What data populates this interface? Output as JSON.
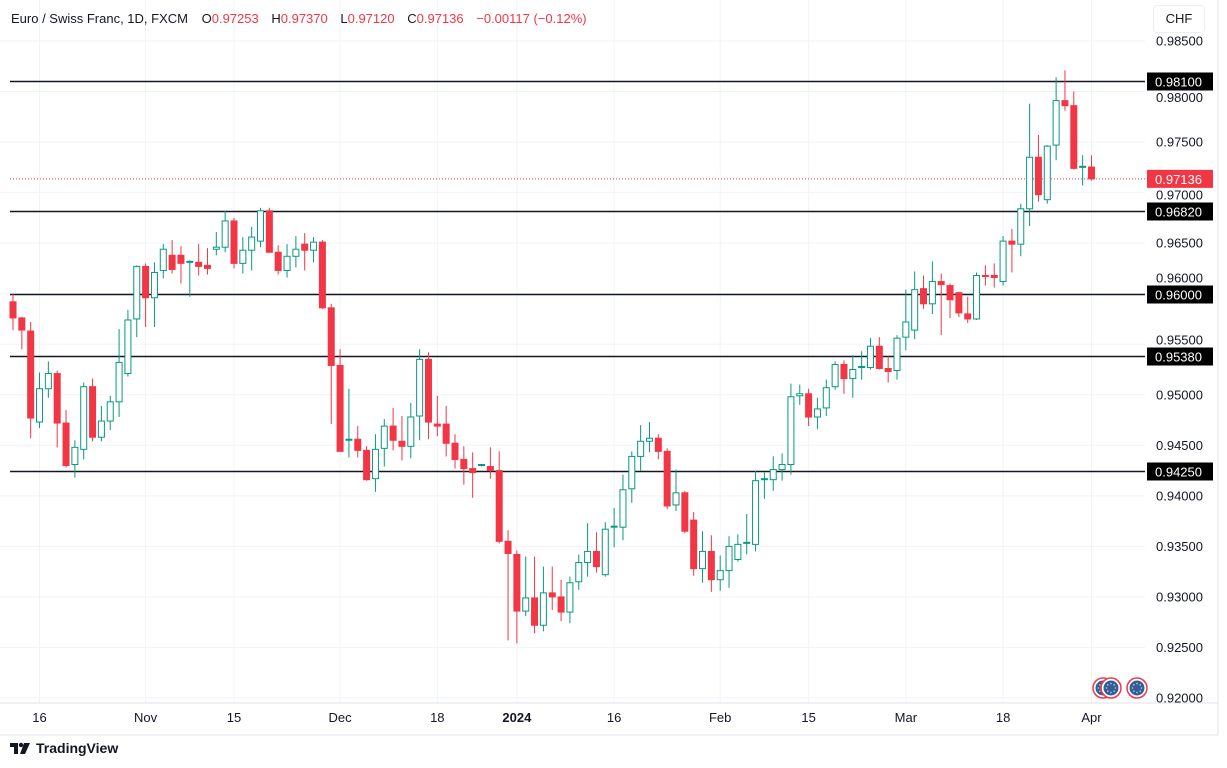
{
  "header": {
    "title": "Euro / Swiss Franc, 1D, FXCM",
    "o_label": "O",
    "o_value": "0.97253",
    "h_label": "H",
    "h_value": "0.97370",
    "l_label": "L",
    "l_value": "0.97120",
    "c_label": "C",
    "c_value": "0.97136",
    "change": "−0.00117 (−0.12%)"
  },
  "currency_button": "CHF",
  "footer": {
    "brand": "TradingView"
  },
  "colors": {
    "up": "#089981",
    "down": "#f23645",
    "level_line": "#131722",
    "last_price": "#f23645",
    "grid": "#f0f3fa"
  },
  "events": [
    {
      "icon": "eu-flag-icon"
    },
    {
      "icon": "eu-flag-icon"
    },
    {
      "icon": "eu-flag-icon"
    }
  ],
  "chart_data": {
    "type": "candlestick",
    "symbol": "EURCHF",
    "interval": "1D",
    "ylim": [
      0.92,
      0.985
    ],
    "grid": true,
    "y_ticks": [
      "0.98500",
      "0.98000",
      "0.97500",
      "0.97000",
      "0.96500",
      "0.96000",
      "0.95500",
      "0.95000",
      "0.94500",
      "0.94000",
      "0.93500",
      "0.93000",
      "0.92500",
      "0.92000"
    ],
    "x_ticks": [
      {
        "label": "16",
        "date": "2023-10-16"
      },
      {
        "label": "Nov",
        "date": "2023-11-01"
      },
      {
        "label": "15",
        "date": "2023-11-15"
      },
      {
        "label": "Dec",
        "date": "2023-12-01"
      },
      {
        "label": "18",
        "date": "2023-12-18"
      },
      {
        "label": "2024",
        "date": "2024-01-01",
        "bold": true
      },
      {
        "label": "16",
        "date": "2024-01-16"
      },
      {
        "label": "Feb",
        "date": "2024-02-01"
      },
      {
        "label": "15",
        "date": "2024-02-15"
      },
      {
        "label": "Mar",
        "date": "2024-03-01"
      },
      {
        "label": "18",
        "date": "2024-03-18"
      },
      {
        "label": "Apr",
        "date": "2024-04-01"
      }
    ],
    "horizontal_levels": [
      "0.98100",
      "0.96820",
      "0.96000",
      "0.95380",
      "0.94250"
    ],
    "last_price": "0.97136",
    "candle_fields": [
      "date",
      "open",
      "high",
      "low",
      "close"
    ],
    "candles": [
      [
        "2023-10-11",
        0.9592,
        0.96,
        0.9564,
        0.9576
      ],
      [
        "2023-10-12",
        0.9576,
        0.9577,
        0.9545,
        0.9564
      ],
      [
        "2023-10-13",
        0.9563,
        0.9572,
        0.9457,
        0.9477
      ],
      [
        "2023-10-16",
        0.9473,
        0.9522,
        0.9467,
        0.9506
      ],
      [
        "2023-10-17",
        0.9506,
        0.9533,
        0.9497,
        0.9521
      ],
      [
        "2023-10-18",
        0.9521,
        0.9524,
        0.9448,
        0.9472
      ],
      [
        "2023-10-19",
        0.9472,
        0.9485,
        0.9428,
        0.943
      ],
      [
        "2023-10-20",
        0.9431,
        0.9455,
        0.9418,
        0.9448
      ],
      [
        "2023-10-23",
        0.9446,
        0.9512,
        0.9436,
        0.9508
      ],
      [
        "2023-10-24",
        0.9508,
        0.9516,
        0.9454,
        0.9458
      ],
      [
        "2023-10-25",
        0.9458,
        0.9489,
        0.9454,
        0.9474
      ],
      [
        "2023-10-26",
        0.9474,
        0.9499,
        0.9465,
        0.9493
      ],
      [
        "2023-10-27",
        0.9493,
        0.9565,
        0.9478,
        0.9532
      ],
      [
        "2023-10-30",
        0.9521,
        0.9584,
        0.9518,
        0.9574
      ],
      [
        "2023-10-31",
        0.9575,
        0.9628,
        0.9557,
        0.9627
      ],
      [
        "2023-11-01",
        0.9627,
        0.963,
        0.9567,
        0.9596
      ],
      [
        "2023-11-02",
        0.9596,
        0.9631,
        0.9567,
        0.9621
      ],
      [
        "2023-11-03",
        0.9623,
        0.9649,
        0.9615,
        0.9644
      ],
      [
        "2023-11-06",
        0.9638,
        0.9653,
        0.962,
        0.9624
      ],
      [
        "2023-11-07",
        0.9638,
        0.9647,
        0.961,
        0.963
      ],
      [
        "2023-11-08",
        0.9631,
        0.9633,
        0.9597,
        0.9632
      ],
      [
        "2023-11-09",
        0.9631,
        0.9649,
        0.9618,
        0.9627
      ],
      [
        "2023-11-10",
        0.9628,
        0.9645,
        0.9619,
        0.9625
      ],
      [
        "2023-11-13",
        0.9644,
        0.9661,
        0.9638,
        0.9646
      ],
      [
        "2023-11-14",
        0.9646,
        0.9682,
        0.9641,
        0.9672
      ],
      [
        "2023-11-15",
        0.9672,
        0.9675,
        0.9625,
        0.963
      ],
      [
        "2023-11-16",
        0.963,
        0.9656,
        0.962,
        0.9643
      ],
      [
        "2023-11-17",
        0.9643,
        0.9666,
        0.9623,
        0.9656
      ],
      [
        "2023-11-20",
        0.9652,
        0.9685,
        0.9646,
        0.9682
      ],
      [
        "2023-11-21",
        0.9682,
        0.9685,
        0.9641,
        0.9641
      ],
      [
        "2023-11-22",
        0.9641,
        0.9648,
        0.9619,
        0.9623
      ],
      [
        "2023-11-23",
        0.9623,
        0.9649,
        0.9616,
        0.9637
      ],
      [
        "2023-11-24",
        0.9637,
        0.9657,
        0.9626,
        0.9644
      ],
      [
        "2023-11-27",
        0.9649,
        0.966,
        0.9623,
        0.9643
      ],
      [
        "2023-11-28",
        0.9643,
        0.9656,
        0.9631,
        0.9651
      ],
      [
        "2023-11-29",
        0.9651,
        0.9653,
        0.9585,
        0.9586
      ],
      [
        "2023-11-30",
        0.9586,
        0.959,
        0.9471,
        0.9529
      ],
      [
        "2023-12-01",
        0.9529,
        0.9545,
        0.9444,
        0.9444
      ],
      [
        "2023-12-04",
        0.9455,
        0.9506,
        0.9438,
        0.9456
      ],
      [
        "2023-12-05",
        0.9456,
        0.9469,
        0.9438,
        0.9445
      ],
      [
        "2023-12-06",
        0.9445,
        0.9449,
        0.9415,
        0.9416
      ],
      [
        "2023-12-07",
        0.9417,
        0.9461,
        0.9404,
        0.9446
      ],
      [
        "2023-12-08",
        0.9447,
        0.9476,
        0.9429,
        0.9469
      ],
      [
        "2023-12-11",
        0.9469,
        0.9487,
        0.9445,
        0.9455
      ],
      [
        "2023-12-12",
        0.9454,
        0.9479,
        0.9435,
        0.9449
      ],
      [
        "2023-12-13",
        0.9449,
        0.9492,
        0.9437,
        0.9478
      ],
      [
        "2023-12-14",
        0.9479,
        0.9545,
        0.9455,
        0.9535
      ],
      [
        "2023-12-15",
        0.9535,
        0.9542,
        0.9456,
        0.9473
      ],
      [
        "2023-12-18",
        0.9471,
        0.9499,
        0.9459,
        0.9469
      ],
      [
        "2023-12-19",
        0.9471,
        0.9489,
        0.9439,
        0.9452
      ],
      [
        "2023-12-20",
        0.9452,
        0.9461,
        0.9427,
        0.9436
      ],
      [
        "2023-12-21",
        0.9436,
        0.9449,
        0.9411,
        0.9427
      ],
      [
        "2023-12-22",
        0.9427,
        0.9443,
        0.9398,
        0.9423
      ],
      [
        "2023-12-26",
        0.943,
        0.9431,
        0.9429,
        0.9431
      ],
      [
        "2023-12-27",
        0.9429,
        0.9448,
        0.9417,
        0.9425
      ],
      [
        "2023-12-28",
        0.9425,
        0.9444,
        0.9353,
        0.9355
      ],
      [
        "2023-12-29",
        0.9355,
        0.9366,
        0.9257,
        0.9343
      ],
      [
        "2024-01-01",
        0.9342,
        0.9346,
        0.9254,
        0.9286
      ],
      [
        "2024-01-02",
        0.9286,
        0.934,
        0.9281,
        0.9299
      ],
      [
        "2024-01-03",
        0.9299,
        0.934,
        0.9264,
        0.9272
      ],
      [
        "2024-01-04",
        0.9272,
        0.933,
        0.9266,
        0.9304
      ],
      [
        "2024-01-05",
        0.9304,
        0.933,
        0.9287,
        0.93
      ],
      [
        "2024-01-08",
        0.93,
        0.9317,
        0.9276,
        0.9285
      ],
      [
        "2024-01-09",
        0.9285,
        0.932,
        0.9274,
        0.9314
      ],
      [
        "2024-01-10",
        0.9315,
        0.9342,
        0.9307,
        0.9334
      ],
      [
        "2024-01-11",
        0.9334,
        0.9373,
        0.932,
        0.9345
      ],
      [
        "2024-01-12",
        0.9345,
        0.9364,
        0.9324,
        0.933
      ],
      [
        "2024-01-15",
        0.9322,
        0.9374,
        0.932,
        0.9367
      ],
      [
        "2024-01-16",
        0.9369,
        0.9388,
        0.9349,
        0.937
      ],
      [
        "2024-01-17",
        0.9369,
        0.9421,
        0.9356,
        0.9406
      ],
      [
        "2024-01-18",
        0.9407,
        0.9444,
        0.9393,
        0.9439
      ],
      [
        "2024-01-19",
        0.9439,
        0.947,
        0.9425,
        0.9454
      ],
      [
        "2024-01-22",
        0.9454,
        0.9473,
        0.9443,
        0.9457
      ],
      [
        "2024-01-23",
        0.9457,
        0.9461,
        0.9436,
        0.9444
      ],
      [
        "2024-01-24",
        0.9444,
        0.9447,
        0.9387,
        0.939
      ],
      [
        "2024-01-25",
        0.9391,
        0.9426,
        0.9385,
        0.9403
      ],
      [
        "2024-01-26",
        0.9403,
        0.9405,
        0.9363,
        0.9365
      ],
      [
        "2024-01-29",
        0.9376,
        0.9384,
        0.9321,
        0.9328
      ],
      [
        "2024-01-30",
        0.9328,
        0.9365,
        0.9314,
        0.9345
      ],
      [
        "2024-01-31",
        0.9345,
        0.9361,
        0.9305,
        0.9317
      ],
      [
        "2024-02-01",
        0.9317,
        0.9341,
        0.9306,
        0.9326
      ],
      [
        "2024-02-02",
        0.9326,
        0.936,
        0.9309,
        0.935
      ],
      [
        "2024-02-05",
        0.9337,
        0.9362,
        0.9335,
        0.9352
      ],
      [
        "2024-02-06",
        0.9353,
        0.9382,
        0.9342,
        0.9354
      ],
      [
        "2024-02-07",
        0.9352,
        0.9425,
        0.9345,
        0.9415
      ],
      [
        "2024-02-08",
        0.9416,
        0.9423,
        0.9397,
        0.9417
      ],
      [
        "2024-02-09",
        0.9416,
        0.9439,
        0.9405,
        0.9426
      ],
      [
        "2024-02-12",
        0.9426,
        0.9442,
        0.9415,
        0.9431
      ],
      [
        "2024-02-13",
        0.9431,
        0.9511,
        0.9421,
        0.9498
      ],
      [
        "2024-02-14",
        0.9499,
        0.951,
        0.949,
        0.9501
      ],
      [
        "2024-02-15",
        0.9501,
        0.9506,
        0.9469,
        0.9478
      ],
      [
        "2024-02-16",
        0.9478,
        0.9497,
        0.9466,
        0.9486
      ],
      [
        "2024-02-19",
        0.9487,
        0.9515,
        0.9479,
        0.9507
      ],
      [
        "2024-02-20",
        0.9508,
        0.9533,
        0.9505,
        0.953
      ],
      [
        "2024-02-21",
        0.953,
        0.9534,
        0.9501,
        0.9516
      ],
      [
        "2024-02-22",
        0.9516,
        0.9539,
        0.9497,
        0.9525
      ],
      [
        "2024-02-23",
        0.9527,
        0.9543,
        0.9515,
        0.9528
      ],
      [
        "2024-02-26",
        0.9527,
        0.9556,
        0.9525,
        0.9548
      ],
      [
        "2024-02-27",
        0.9548,
        0.9557,
        0.9525,
        0.9526
      ],
      [
        "2024-02-28",
        0.9526,
        0.9538,
        0.9512,
        0.9523
      ],
      [
        "2024-02-29",
        0.9524,
        0.9559,
        0.9515,
        0.9556
      ],
      [
        "2024-03-01",
        0.9557,
        0.9604,
        0.9544,
        0.9572
      ],
      [
        "2024-03-04",
        0.9564,
        0.9622,
        0.9555,
        0.9604
      ],
      [
        "2024-03-05",
        0.9605,
        0.9618,
        0.9585,
        0.959
      ],
      [
        "2024-03-06",
        0.959,
        0.9632,
        0.958,
        0.9612
      ],
      [
        "2024-03-07",
        0.9612,
        0.962,
        0.9559,
        0.9609
      ],
      [
        "2024-03-08",
        0.9608,
        0.961,
        0.9576,
        0.9594
      ],
      [
        "2024-03-11",
        0.9601,
        0.9602,
        0.9577,
        0.9581
      ],
      [
        "2024-03-12",
        0.958,
        0.9597,
        0.9571,
        0.9575
      ],
      [
        "2024-03-13",
        0.9575,
        0.9621,
        0.9574,
        0.9618
      ],
      [
        "2024-03-14",
        0.9618,
        0.9628,
        0.9608,
        0.9617
      ],
      [
        "2024-03-15",
        0.9618,
        0.963,
        0.9606,
        0.9616
      ],
      [
        "2024-03-18",
        0.9612,
        0.9657,
        0.9608,
        0.9652
      ],
      [
        "2024-03-19",
        0.9652,
        0.9664,
        0.9621,
        0.9649
      ],
      [
        "2024-03-20",
        0.9649,
        0.9689,
        0.9637,
        0.9684
      ],
      [
        "2024-03-21",
        0.9684,
        0.9788,
        0.9667,
        0.9735
      ],
      [
        "2024-03-22",
        0.9735,
        0.9757,
        0.9691,
        0.9698
      ],
      [
        "2024-03-25",
        0.9693,
        0.9747,
        0.9689,
        0.9746
      ],
      [
        "2024-03-26",
        0.9747,
        0.9814,
        0.9732,
        0.9791
      ],
      [
        "2024-03-27",
        0.9791,
        0.9821,
        0.9781,
        0.9786
      ],
      [
        "2024-03-28",
        0.9786,
        0.98,
        0.9723,
        0.9724
      ],
      [
        "2024-03-29",
        0.9725,
        0.9737,
        0.9707,
        0.9726
      ],
      [
        "2024-04-01",
        0.97253,
        0.9737,
        0.9712,
        0.97136
      ]
    ]
  }
}
